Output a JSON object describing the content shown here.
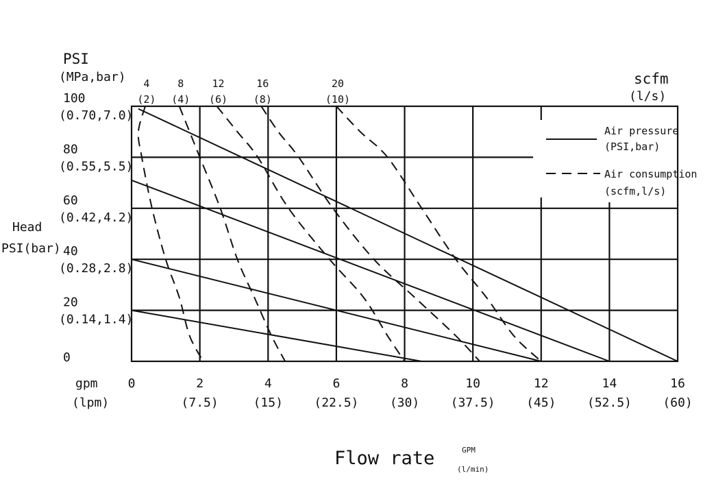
{
  "chart_data": {
    "type": "line",
    "y_axis": {
      "label_line1": "PSI",
      "label_line2": "(MPa,bar)",
      "range": [
        0,
        100
      ],
      "ticks": [
        {
          "value": 0,
          "label": "0",
          "sub": ""
        },
        {
          "value": 20,
          "label": "20",
          "sub": "(0.14,1.4)"
        },
        {
          "value": 40,
          "label": "40",
          "sub": "(0.28,2.8)"
        },
        {
          "value": 60,
          "label": "60",
          "sub": "(0.42,4.2)"
        },
        {
          "value": 80,
          "label": "80",
          "sub": "(0.55,5.5)"
        },
        {
          "value": 100,
          "label": "100",
          "sub": "(0.70,7.0)"
        }
      ],
      "side_label_line1": "Head",
      "side_label_line2": "PSI(bar)"
    },
    "x_axis": {
      "label_line1": "gpm",
      "label_line2": "(lpm)",
      "range": [
        0,
        16
      ],
      "ticks": [
        {
          "value": 0,
          "label": "0",
          "sub": ""
        },
        {
          "value": 2,
          "label": "2",
          "sub": "(7.5)"
        },
        {
          "value": 4,
          "label": "4",
          "sub": "(15)"
        },
        {
          "value": 6,
          "label": "6",
          "sub": "(22.5)"
        },
        {
          "value": 8,
          "label": "8",
          "sub": "(30)"
        },
        {
          "value": 10,
          "label": "10",
          "sub": "(37.5)"
        },
        {
          "value": 12,
          "label": "12",
          "sub": "(45)"
        },
        {
          "value": 14,
          "label": "14",
          "sub": "(52.5)"
        },
        {
          "value": 16,
          "label": "16",
          "sub": "(60)"
        }
      ]
    },
    "scfm_axis": {
      "label_line1": "scfm",
      "label_line2": "(l/s)",
      "ticks": [
        {
          "value": 4,
          "label": "4",
          "sub": "(2)"
        },
        {
          "value": 8,
          "label": "8",
          "sub": "(4)"
        },
        {
          "value": 12,
          "label": "12",
          "sub": "(6)"
        },
        {
          "value": 16,
          "label": "16",
          "sub": "(8)"
        },
        {
          "value": 20,
          "label": "20",
          "sub": "(10)"
        }
      ]
    },
    "title": "Flow rate",
    "title_unit_line1": "GPM",
    "title_unit_line2": "(l/min)",
    "legend": {
      "position": "top-right",
      "items": [
        {
          "style": "solid",
          "line1": "Air pressure",
          "line2": "(PSI,bar)"
        },
        {
          "style": "dashed",
          "line1": "Air consumption",
          "line2": "(scfm,l/s)"
        }
      ]
    },
    "air_pressure_curves": [
      {
        "pressure_psi": 100,
        "points": [
          [
            0.2,
            99
          ],
          [
            16,
            0
          ]
        ]
      },
      {
        "pressure_psi": 70,
        "points": [
          [
            0,
            71
          ],
          [
            14,
            0
          ]
        ]
      },
      {
        "pressure_psi": 40,
        "points": [
          [
            0,
            40
          ],
          [
            12,
            0
          ]
        ]
      },
      {
        "pressure_psi": 20,
        "points": [
          [
            0,
            20
          ],
          [
            8.5,
            0
          ]
        ]
      }
    ],
    "air_consumption_curves": [
      {
        "scfm": 4,
        "points": [
          [
            0.4,
            100
          ],
          [
            0.2,
            90
          ],
          [
            0.3,
            80
          ],
          [
            0.6,
            60
          ],
          [
            1.0,
            40
          ],
          [
            1.4,
            25
          ],
          [
            1.7,
            10
          ],
          [
            2.1,
            0
          ]
        ]
      },
      {
        "scfm": 8,
        "points": [
          [
            1.4,
            100
          ],
          [
            1.7,
            90
          ],
          [
            2.0,
            80
          ],
          [
            2.6,
            60
          ],
          [
            3.1,
            40
          ],
          [
            3.6,
            25
          ],
          [
            4.1,
            10
          ],
          [
            4.5,
            0
          ]
        ]
      },
      {
        "scfm": 12,
        "points": [
          [
            2.5,
            100
          ],
          [
            3.1,
            90
          ],
          [
            3.7,
            80
          ],
          [
            4.6,
            60
          ],
          [
            5.8,
            40
          ],
          [
            6.8,
            25
          ],
          [
            7.5,
            10
          ],
          [
            8.0,
            0
          ]
        ]
      },
      {
        "scfm": 16,
        "points": [
          [
            3.8,
            100
          ],
          [
            4.3,
            90
          ],
          [
            4.9,
            80
          ],
          [
            5.9,
            60
          ],
          [
            7.1,
            40
          ],
          [
            8.3,
            25
          ],
          [
            9.5,
            10
          ],
          [
            10.2,
            0
          ]
        ]
      },
      {
        "scfm": 20,
        "points": [
          [
            6.0,
            100
          ],
          [
            6.7,
            90
          ],
          [
            7.5,
            80
          ],
          [
            8.5,
            60
          ],
          [
            9.5,
            40
          ],
          [
            10.4,
            25
          ],
          [
            11.2,
            10
          ],
          [
            12.0,
            0
          ]
        ]
      }
    ]
  }
}
